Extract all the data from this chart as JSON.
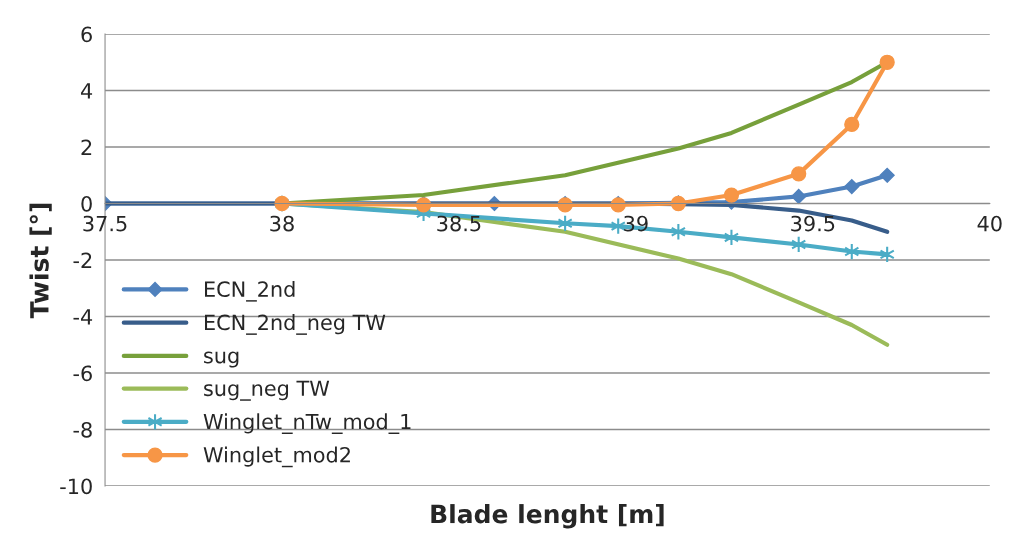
{
  "chart_data": {
    "type": "line",
    "xlabel": "Blade lenght [m]",
    "ylabel": "Twist [°]",
    "xlim": [
      37.5,
      40
    ],
    "xticks": [
      37.5,
      38,
      38.5,
      39,
      39.5,
      40
    ],
    "ylim": [
      -10,
      6
    ],
    "yticks": [
      -10,
      -8,
      -6,
      -4,
      -2,
      0,
      2,
      4,
      6
    ],
    "grid": "y",
    "legend": "bottom left",
    "series": [
      {
        "name": "ECN_2nd",
        "color": "#4f81bd",
        "marker": "diamond",
        "x": [
          37.5,
          38,
          38.4,
          38.6,
          38.8,
          38.95,
          39.12,
          39.27,
          39.46,
          39.61,
          39.71
        ],
        "values": [
          0,
          0,
          0,
          0,
          0,
          0,
          0.02,
          0.05,
          0.25,
          0.6,
          1.0
        ]
      },
      {
        "name": "ECN_2nd_neg TW",
        "color": "#385d8a",
        "marker": "none",
        "x": [
          37.5,
          38,
          38.4,
          38.6,
          38.8,
          38.95,
          39.12,
          39.27,
          39.46,
          39.61,
          39.71
        ],
        "values": [
          0,
          0,
          0,
          0,
          0,
          0,
          -0.02,
          -0.05,
          -0.25,
          -0.6,
          -1.0
        ]
      },
      {
        "name": "sug",
        "color": "#77a03b",
        "marker": "none",
        "x": [
          38,
          38.4,
          38.8,
          39.12,
          39.27,
          39.46,
          39.61,
          39.71
        ],
        "values": [
          0,
          0.3,
          1.0,
          1.95,
          2.5,
          3.5,
          4.3,
          5.0
        ]
      },
      {
        "name": "sug_neg TW",
        "color": "#9bbb59",
        "marker": "none",
        "x": [
          38,
          38.4,
          38.8,
          39.12,
          39.27,
          39.46,
          39.61,
          39.71
        ],
        "values": [
          0,
          -0.3,
          -1.0,
          -1.95,
          -2.5,
          -3.5,
          -4.3,
          -5.0
        ]
      },
      {
        "name": "Winglet_nTw_mod_1",
        "color": "#4bacc6",
        "marker": "cross",
        "x": [
          38,
          38.4,
          38.8,
          38.95,
          39.12,
          39.27,
          39.46,
          39.61,
          39.71
        ],
        "values": [
          0,
          -0.35,
          -0.7,
          -0.8,
          -1.0,
          -1.2,
          -1.45,
          -1.7,
          -1.8
        ]
      },
      {
        "name": "Winglet_mod2",
        "color": "#f79646",
        "marker": "circle",
        "x": [
          38,
          38.4,
          38.8,
          38.95,
          39.12,
          39.27,
          39.46,
          39.61,
          39.71
        ],
        "values": [
          0,
          -0.05,
          -0.05,
          -0.05,
          0,
          0.3,
          1.05,
          2.8,
          5.0
        ]
      }
    ]
  }
}
